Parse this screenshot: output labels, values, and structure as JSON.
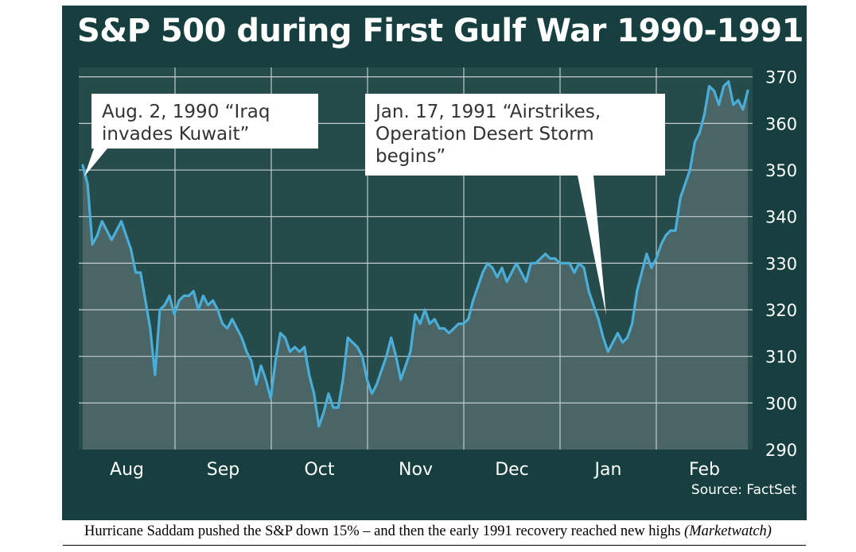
{
  "chart_data": {
    "type": "line",
    "title": "S&P 500 during First Gulf War 1990-1991",
    "series": [
      {
        "name": "",
        "x_index": [
          0,
          1,
          2,
          3,
          4,
          5,
          6,
          7,
          8,
          9,
          10,
          11,
          12,
          13,
          14,
          15,
          16,
          17,
          18,
          19,
          20,
          21,
          22,
          23,
          24,
          25,
          26,
          27,
          28,
          29,
          30,
          31,
          32,
          33,
          34,
          35,
          36,
          37,
          38,
          39,
          40,
          41,
          42,
          43,
          44,
          45,
          46,
          47,
          48,
          49,
          50,
          51,
          52,
          53,
          54,
          55,
          56,
          57,
          58,
          59,
          60,
          61,
          62,
          63,
          64,
          65,
          66,
          67,
          68,
          69,
          70,
          71,
          72,
          73,
          74,
          75,
          76,
          77,
          78,
          79,
          80,
          81,
          82,
          83,
          84,
          85,
          86,
          87,
          88,
          89,
          90,
          91,
          92,
          93,
          94,
          95,
          96,
          97,
          98,
          99,
          100,
          101,
          102,
          103,
          104,
          105,
          106,
          107,
          108,
          109,
          110,
          111,
          112,
          113,
          114,
          115,
          116,
          117,
          118,
          119,
          120,
          121,
          122,
          123,
          124,
          125,
          126,
          127,
          128,
          129,
          130,
          131,
          132,
          133,
          134,
          135,
          136,
          137,
          138
        ],
        "values": [
          351,
          347,
          334,
          336,
          339,
          337,
          335,
          337,
          339,
          336,
          333,
          328,
          328,
          322,
          316,
          306,
          320,
          321,
          323,
          319,
          322,
          323,
          323,
          324,
          320,
          323,
          321,
          322,
          320,
          317,
          316,
          318,
          316,
          314,
          311,
          309,
          304,
          308,
          305,
          301,
          309,
          315,
          314,
          311,
          312,
          311,
          312,
          306,
          302,
          295,
          298,
          302,
          299,
          299,
          305,
          314,
          313,
          312,
          310,
          305,
          302,
          304,
          307,
          310,
          314,
          310,
          305,
          308,
          311,
          319,
          317,
          320,
          317,
          318,
          316,
          316,
          315,
          316,
          317,
          317,
          318,
          322,
          325,
          328,
          330,
          329,
          327,
          329,
          326,
          328,
          330,
          328,
          326,
          330,
          330,
          331,
          332,
          331,
          331,
          330,
          330,
          330,
          328,
          330,
          329,
          324,
          321,
          318,
          314,
          311,
          313,
          315,
          313,
          314,
          317,
          324,
          328,
          332,
          329,
          331,
          334,
          336,
          337,
          337,
          344,
          347,
          350,
          356,
          358,
          362,
          368,
          367,
          364,
          368,
          369,
          364,
          365,
          363,
          367
        ]
      }
    ],
    "x_tick_labels": [
      "Aug",
      "Sep",
      "Oct",
      "Nov",
      "Dec",
      "Jan",
      "Feb"
    ],
    "y_ticks": [
      290,
      300,
      310,
      320,
      330,
      340,
      350,
      360,
      370
    ],
    "ylim": [
      290,
      372
    ],
    "xlabel": "",
    "ylabel": "",
    "grid": true,
    "annotations": [
      {
        "lines": [
          "Aug. 2, 1990 “Iraq",
          "invades Kuwait”"
        ]
      },
      {
        "lines": [
          "Jan. 17, 1991 “Airstrikes,",
          "Operation Desert Storm",
          "begins”"
        ]
      }
    ],
    "source": "Source: FactSet"
  },
  "caption": {
    "text": "Hurricane Saddam pushed the S&P down 15% – and then the early 1991 recovery reached new highs ",
    "source_italic": "(Marketwatch)"
  },
  "colors": {
    "panel": "#173f40",
    "plot_area": "#264b4b",
    "area_fill": "#4a6566",
    "grid": "#c3cccc",
    "line": "#4aaed8",
    "callout_box": "#ffffff"
  }
}
